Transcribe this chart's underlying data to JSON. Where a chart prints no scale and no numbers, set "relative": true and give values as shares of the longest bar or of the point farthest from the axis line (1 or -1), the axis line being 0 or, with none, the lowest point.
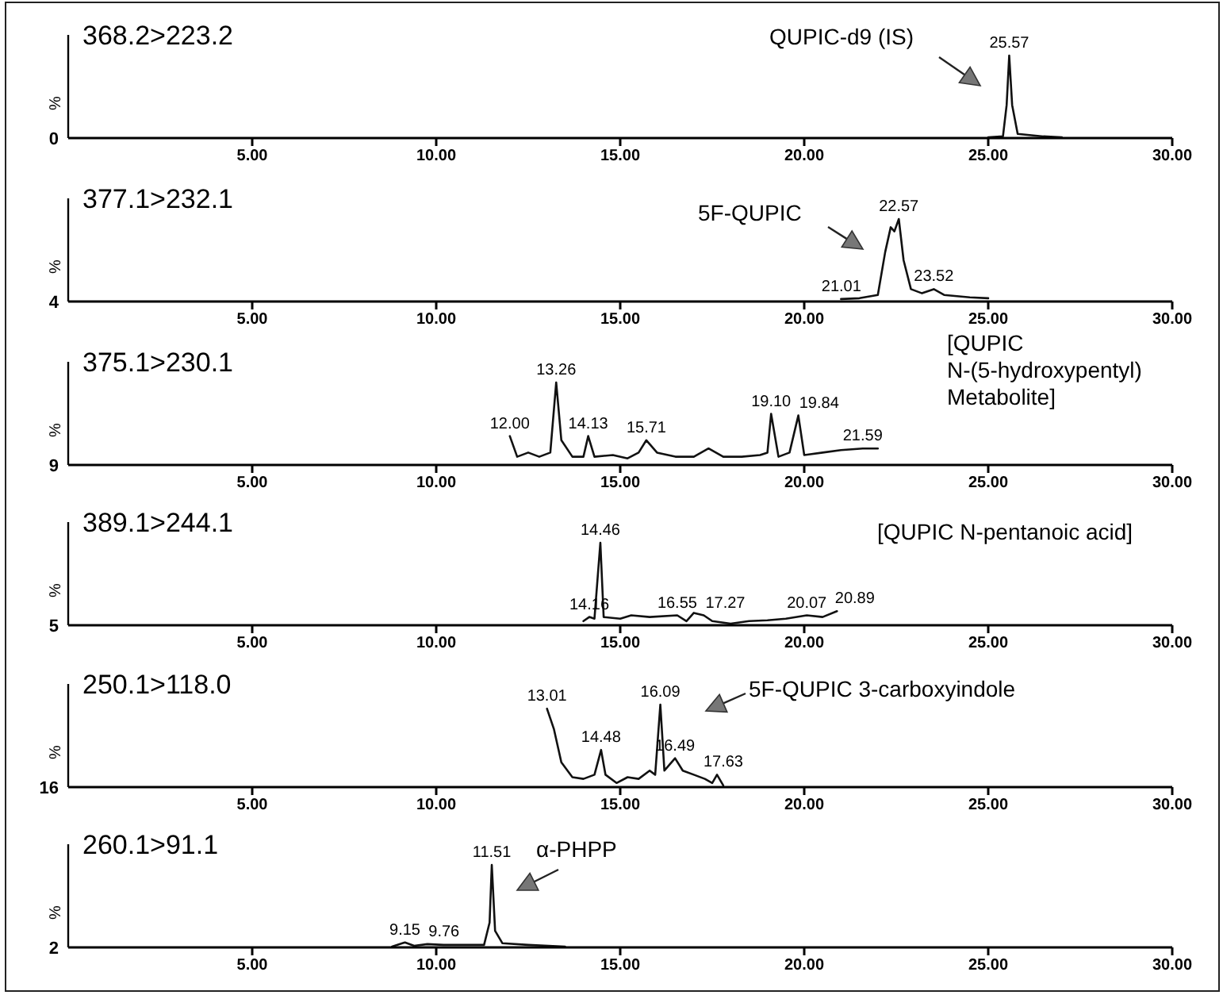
{
  "chart_data": [
    {
      "type": "line",
      "title": "368.2>223.2",
      "ylabel": "%",
      "relative": true,
      "xlim": [
        0,
        30
      ],
      "xticks": [
        {
          "value": 5,
          "label": "5.00"
        },
        {
          "value": 10,
          "label": "10.00"
        },
        {
          "value": 15,
          "label": "15.00"
        },
        {
          "value": 20,
          "label": "20.00"
        },
        {
          "value": 25,
          "label": "25.00"
        },
        {
          "value": 30,
          "label": "30.00"
        }
      ],
      "series": [
        {
          "color": "#111111",
          "x": [
            25.0,
            25.4,
            25.5,
            25.57,
            25.65,
            25.8,
            26.5,
            27.0
          ],
          "values": [
            0.01,
            0.02,
            0.4,
            1,
            0.4,
            0.05,
            0.02,
            0.01
          ]
        }
      ],
      "annotations": [
        "0",
        "QUPIC-d9 (IS)",
        {
          "text": "25.57",
          "x": 25.57,
          "y": 1
        }
      ]
    },
    {
      "type": "line",
      "title": "377.1>232.1",
      "ylabel": "%",
      "relative": true,
      "xlim": [
        0,
        30
      ],
      "xticks": [
        {
          "value": 5,
          "label": "5.00"
        },
        {
          "value": 10,
          "label": "10.00"
        },
        {
          "value": 15,
          "label": "15.00"
        },
        {
          "value": 20,
          "label": "20.00"
        },
        {
          "value": 25,
          "label": "25.00"
        },
        {
          "value": 30,
          "label": "30.00"
        }
      ],
      "series": [
        {
          "color": "#111111",
          "x": [
            21.0,
            21.5,
            22.0,
            22.2,
            22.35,
            22.45,
            22.57,
            22.7,
            22.9,
            23.2,
            23.52,
            23.8,
            24.5,
            25.0
          ],
          "values": [
            0.03,
            0.04,
            0.08,
            0.6,
            0.9,
            0.85,
            1,
            0.5,
            0.15,
            0.1,
            0.15,
            0.08,
            0.05,
            0.04
          ]
        }
      ],
      "annotations": [
        "4",
        "5F-QUPIC",
        {
          "text": "21.01",
          "x": 21.01,
          "y": 0.03
        },
        {
          "text": "22.57",
          "x": 22.57,
          "y": 1
        },
        {
          "text": "23.52",
          "x": 23.52,
          "y": 0.15
        }
      ]
    },
    {
      "type": "line",
      "title": "375.1>230.1",
      "ylabel": "%",
      "relative": true,
      "xlim": [
        0,
        30
      ],
      "xticks": [
        {
          "value": 5,
          "label": "5.00"
        },
        {
          "value": 10,
          "label": "10.00"
        },
        {
          "value": 15,
          "label": "15.00"
        },
        {
          "value": 20,
          "label": "20.00"
        },
        {
          "value": 25,
          "label": "25.00"
        },
        {
          "value": 30,
          "label": "30.00"
        }
      ],
      "series": [
        {
          "color": "#111111",
          "x": [
            12.0,
            12.2,
            12.5,
            12.8,
            13.1,
            13.26,
            13.4,
            13.7,
            14.0,
            14.13,
            14.3,
            14.8,
            15.2,
            15.5,
            15.71,
            16.0,
            16.5,
            17.0,
            17.4,
            17.8,
            18.3,
            18.8,
            19.0,
            19.1,
            19.3,
            19.6,
            19.84,
            20.0,
            20.5,
            21.0,
            21.59,
            22.0
          ],
          "values": [
            0.35,
            0.1,
            0.15,
            0.1,
            0.15,
            1,
            0.3,
            0.1,
            0.1,
            0.35,
            0.1,
            0.12,
            0.08,
            0.15,
            0.3,
            0.15,
            0.1,
            0.1,
            0.2,
            0.1,
            0.1,
            0.12,
            0.15,
            0.62,
            0.1,
            0.15,
            0.6,
            0.12,
            0.15,
            0.18,
            0.2,
            0.2
          ]
        }
      ],
      "annotations": [
        "9",
        "[QUPIC N-(5-hydroxypentyl) Metabolite]",
        {
          "text": "12.00",
          "x": 12.0,
          "y": 0.35
        },
        {
          "text": "13.26",
          "x": 13.26,
          "y": 1
        },
        {
          "text": "14.13",
          "x": 14.13,
          "y": 0.35
        },
        {
          "text": "15.71",
          "x": 15.71,
          "y": 0.3
        },
        {
          "text": "19.10",
          "x": 19.1,
          "y": 0.62
        },
        {
          "text": "19.84",
          "x": 19.84,
          "y": 0.6
        },
        {
          "text": "21.59",
          "x": 21.59,
          "y": 0.2
        }
      ]
    },
    {
      "type": "line",
      "title": "389.1>244.1",
      "ylabel": "%",
      "relative": true,
      "xlim": [
        0,
        30
      ],
      "xticks": [
        {
          "value": 5,
          "label": "5.00"
        },
        {
          "value": 10,
          "label": "10.00"
        },
        {
          "value": 15,
          "label": "15.00"
        },
        {
          "value": 20,
          "label": "20.00"
        },
        {
          "value": 25,
          "label": "25.00"
        },
        {
          "value": 30,
          "label": "30.00"
        }
      ],
      "series": [
        {
          "color": "#111111",
          "x": [
            14.0,
            14.16,
            14.3,
            14.46,
            14.55,
            15.0,
            15.3,
            15.8,
            16.55,
            16.8,
            17.0,
            17.27,
            17.5,
            18.0,
            18.5,
            19.0,
            19.5,
            20.07,
            20.5,
            20.89
          ],
          "values": [
            0.05,
            0.1,
            0.08,
            1,
            0.1,
            0.08,
            0.12,
            0.1,
            0.12,
            0.05,
            0.15,
            0.12,
            0.05,
            0.02,
            0.05,
            0.06,
            0.08,
            0.12,
            0.1,
            0.17
          ]
        }
      ],
      "annotations": [
        "5",
        "[QUPIC N-pentanoic acid]",
        {
          "text": "14.16",
          "x": 14.16,
          "y": 0.1
        },
        {
          "text": "14.46",
          "x": 14.46,
          "y": 1
        },
        {
          "text": "16.55",
          "x": 16.55,
          "y": 0.12
        },
        {
          "text": "17.27",
          "x": 17.27,
          "y": 0.12
        },
        {
          "text": "20.07",
          "x": 20.07,
          "y": 0.12
        },
        {
          "text": "20.89",
          "x": 20.89,
          "y": 0.17
        }
      ]
    },
    {
      "type": "line",
      "title": "250.1>118.0",
      "ylabel": "%",
      "relative": true,
      "xlim": [
        0,
        30
      ],
      "xticks": [
        {
          "value": 5,
          "label": "5.00"
        },
        {
          "value": 10,
          "label": "10.00"
        },
        {
          "value": 15,
          "label": "15.00"
        },
        {
          "value": 20,
          "label": "20.00"
        },
        {
          "value": 25,
          "label": "25.00"
        },
        {
          "value": 30,
          "label": "30.00"
        }
      ],
      "series": [
        {
          "color": "#111111",
          "x": [
            13.01,
            13.2,
            13.4,
            13.7,
            14.0,
            14.3,
            14.48,
            14.6,
            14.9,
            15.2,
            15.5,
            15.8,
            15.95,
            16.09,
            16.2,
            16.49,
            16.7,
            17.0,
            17.3,
            17.5,
            17.63,
            17.8
          ],
          "values": [
            0.95,
            0.7,
            0.3,
            0.12,
            0.1,
            0.15,
            0.45,
            0.15,
            0.05,
            0.12,
            0.1,
            0.2,
            0.15,
            1,
            0.2,
            0.35,
            0.2,
            0.15,
            0.1,
            0.05,
            0.15,
            0.02
          ]
        }
      ],
      "annotations": [
        "16",
        "5F-QUPIC 3-carboxyindole",
        {
          "text": "13.01",
          "x": 13.01,
          "y": 0.95
        },
        {
          "text": "14.48",
          "x": 14.48,
          "y": 0.45
        },
        {
          "text": "16.09",
          "x": 16.09,
          "y": 1
        },
        {
          "text": "16.49",
          "x": 16.49,
          "y": 0.35
        },
        {
          "text": "17.63",
          "x": 17.63,
          "y": 0.15
        }
      ]
    },
    {
      "type": "line",
      "title": "260.1>91.1",
      "ylabel": "%",
      "relative": true,
      "xlim": [
        0,
        30
      ],
      "xticks": [
        {
          "value": 5,
          "label": "5.00"
        },
        {
          "value": 10,
          "label": "10.00"
        },
        {
          "value": 15,
          "label": "15.00"
        },
        {
          "value": 20,
          "label": "20.00"
        },
        {
          "value": 25,
          "label": "25.00"
        },
        {
          "value": 30,
          "label": "30.00"
        }
      ],
      "series": [
        {
          "color": "#111111",
          "x": [
            8.8,
            9.15,
            9.4,
            9.76,
            10.2,
            10.8,
            11.3,
            11.45,
            11.51,
            11.6,
            11.8,
            12.5,
            13.5
          ],
          "values": [
            0.01,
            0.06,
            0.02,
            0.04,
            0.03,
            0.03,
            0.03,
            0.3,
            1,
            0.2,
            0.05,
            0.03,
            0.01
          ]
        }
      ],
      "annotations": [
        "2",
        "α-PHPP",
        {
          "text": "9.15",
          "x": 9.15,
          "y": 0.06
        },
        {
          "text": "9.76",
          "x": 9.76,
          "y": 0.04
        },
        {
          "text": "11.51",
          "x": 11.51,
          "y": 1
        }
      ]
    }
  ]
}
